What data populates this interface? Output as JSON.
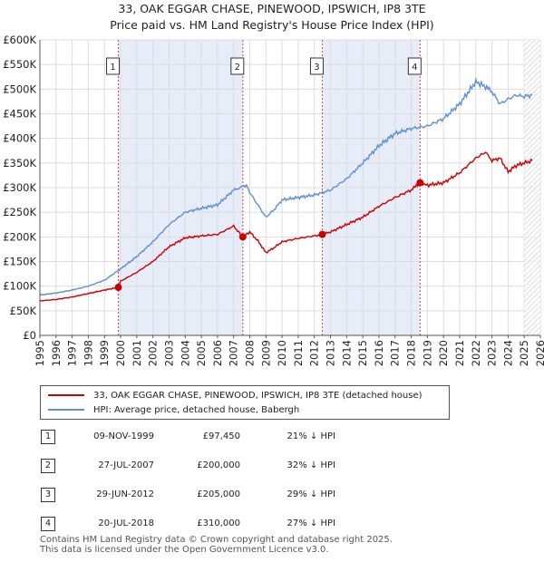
{
  "chart_data": {
    "type": "line",
    "title": "33, OAK EGGAR CHASE, PINEWOOD, IPSWICH, IP8 3TE",
    "subtitle": "Price paid vs. HM Land Registry's House Price Index (HPI)",
    "xlim": [
      1995,
      2026
    ],
    "ylim": [
      0,
      600000
    ],
    "x_ticks": [
      "1995",
      "1996",
      "1997",
      "1998",
      "1999",
      "2000",
      "2001",
      "2002",
      "2003",
      "2004",
      "2005",
      "2006",
      "2007",
      "2008",
      "2009",
      "2010",
      "2011",
      "2012",
      "2013",
      "2014",
      "2015",
      "2016",
      "2017",
      "2018",
      "2019",
      "2020",
      "2021",
      "2022",
      "2023",
      "2024",
      "2025",
      "2026"
    ],
    "y_ticks": [
      {
        "value": 0,
        "label": "£0"
      },
      {
        "value": 50000,
        "label": "£50K"
      },
      {
        "value": 100000,
        "label": "£100K"
      },
      {
        "value": 150000,
        "label": "£150K"
      },
      {
        "value": 200000,
        "label": "£200K"
      },
      {
        "value": 250000,
        "label": "£250K"
      },
      {
        "value": 300000,
        "label": "£300K"
      },
      {
        "value": 350000,
        "label": "£350K"
      },
      {
        "value": 400000,
        "label": "£400K"
      },
      {
        "value": 450000,
        "label": "£450K"
      },
      {
        "value": 500000,
        "label": "£500K"
      },
      {
        "value": 550000,
        "label": "£550K"
      },
      {
        "value": 600000,
        "label": "£600K"
      }
    ],
    "grid": true,
    "shaded_periods": [
      [
        1999.86,
        2007.57
      ],
      [
        2012.49,
        2018.55
      ]
    ],
    "forecast_hatch_from": 2025.0,
    "series": [
      {
        "name": "33, OAK EGGAR CHASE, PINEWOOD, IPSWICH, IP8 3TE (detached house)",
        "color": "#cc0000",
        "x": [
          1995,
          1996,
          1997,
          1998,
          1999,
          1999.86,
          2000,
          2001,
          2002,
          2003,
          2004,
          2005,
          2006,
          2007,
          2007.57,
          2008,
          2008.5,
          2009,
          2009.5,
          2010,
          2011,
          2012,
          2012.49,
          2013,
          2014,
          2015,
          2016,
          2017,
          2018,
          2018.55,
          2019,
          2020,
          2021,
          2022,
          2022.6,
          2023,
          2023.5,
          2024,
          2024.5,
          2025,
          2025.5
        ],
        "y": [
          70000,
          73000,
          78000,
          85000,
          92000,
          97450,
          110000,
          128000,
          150000,
          180000,
          198000,
          202000,
          205000,
          222000,
          200000,
          210000,
          192000,
          168000,
          178000,
          190000,
          197000,
          202000,
          205000,
          210000,
          225000,
          240000,
          262000,
          280000,
          295000,
          310000,
          305000,
          310000,
          330000,
          360000,
          372000,
          355000,
          360000,
          332000,
          345000,
          350000,
          355000
        ]
      },
      {
        "name": "HPI: Average price, detached house, Babergh",
        "color": "#6090d0",
        "x": [
          1995,
          1996,
          1997,
          1998,
          1999,
          2000,
          2001,
          2002,
          2003,
          2004,
          2005,
          2006,
          2007,
          2007.8,
          2008,
          2008.5,
          2009,
          2009.5,
          2010,
          2011,
          2012,
          2013,
          2014,
          2015,
          2016,
          2017,
          2018,
          2019,
          2020,
          2021,
          2022,
          2022.6,
          2023,
          2023.5,
          2024,
          2024.5,
          2025,
          2025.5
        ],
        "y": [
          82000,
          86000,
          92000,
          100000,
          112000,
          135000,
          160000,
          190000,
          225000,
          250000,
          258000,
          265000,
          295000,
          305000,
          290000,
          265000,
          240000,
          255000,
          275000,
          280000,
          285000,
          295000,
          318000,
          350000,
          385000,
          410000,
          420000,
          425000,
          440000,
          470000,
          515000,
          505000,
          495000,
          470000,
          480000,
          488000,
          485000,
          488000
        ]
      }
    ],
    "annotations": [
      {
        "label": "1",
        "x": 1999.86,
        "y": 97450
      },
      {
        "label": "2",
        "x": 2007.57,
        "y": 200000
      },
      {
        "label": "3",
        "x": 2012.49,
        "y": 205000
      },
      {
        "label": "4",
        "x": 2018.55,
        "y": 310000
      }
    ]
  },
  "legend": {
    "property_label": "33, OAK EGGAR CHASE, PINEWOOD, IPSWICH, IP8 3TE (detached house)",
    "hpi_label": "HPI: Average price, detached house, Babergh"
  },
  "sales": [
    {
      "num": "1",
      "date": "09-NOV-1999",
      "price": "£97,450",
      "hpi": "21% ↓ HPI"
    },
    {
      "num": "2",
      "date": "27-JUL-2007",
      "price": "£200,000",
      "hpi": "32% ↓ HPI"
    },
    {
      "num": "3",
      "date": "29-JUN-2012",
      "price": "£205,000",
      "hpi": "29% ↓ HPI"
    },
    {
      "num": "4",
      "date": "20-JUL-2018",
      "price": "£310,000",
      "hpi": "27% ↓ HPI"
    }
  ],
  "footer": {
    "line1": "Contains HM Land Registry data © Crown copyright and database right 2025.",
    "line2": "This data is licensed under the Open Government Licence v3.0."
  },
  "colors": {
    "property": "#cc0000",
    "hpi": "#6090d0",
    "shade": "#e6ecf8",
    "grid": "#dddddd"
  }
}
